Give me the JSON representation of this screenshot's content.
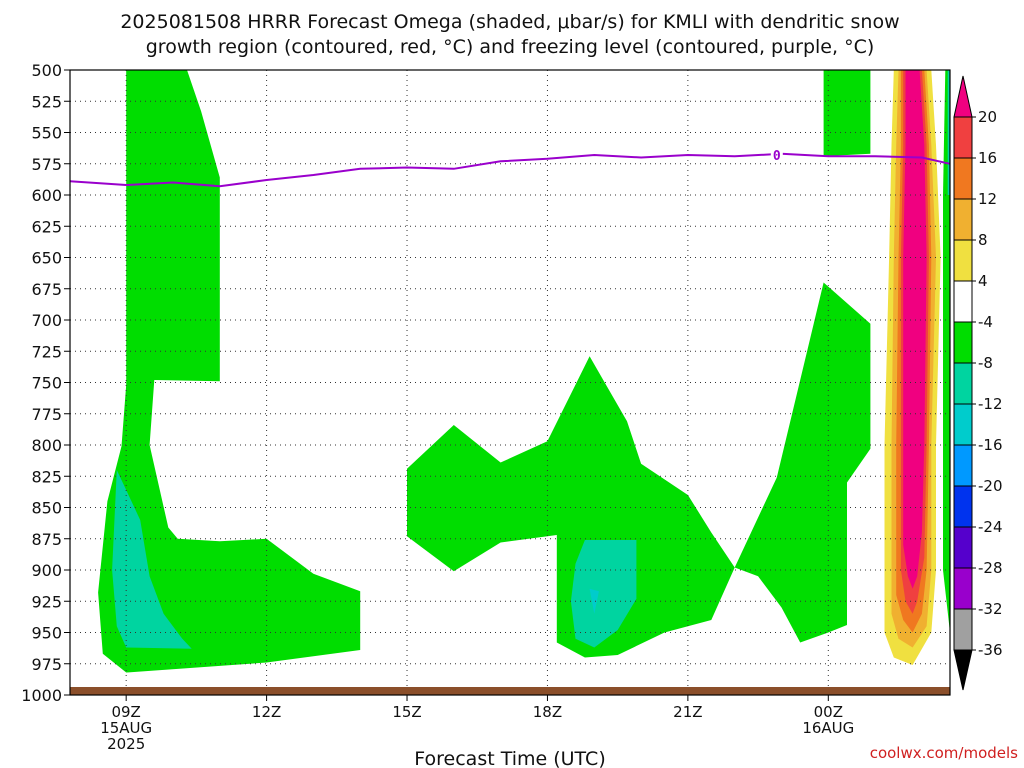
{
  "chart_data": {
    "type": "heatmap",
    "title_line1": "2025081508 HRRR Forecast Omega (shaded, μbar/s) for KMLI with dendritic snow",
    "title_line2": "growth region (contoured, red, °C) and freezing level (contoured, purple, °C)",
    "xlabel": "Forecast Time (UTC)",
    "credit": "coolwx.com/models",
    "y_axis": {
      "label": "",
      "ticks": [
        500,
        525,
        550,
        575,
        600,
        625,
        650,
        675,
        700,
        725,
        750,
        775,
        800,
        825,
        850,
        875,
        900,
        925,
        950,
        975,
        1000
      ],
      "tick_labels": [
        "500",
        "525",
        "550",
        "575",
        "600",
        "625",
        "650",
        "675",
        "700",
        "725",
        "750",
        "775",
        "800",
        "825",
        "850",
        "875",
        "900",
        "925",
        "950",
        "975",
        "1000"
      ],
      "range": [
        500,
        1000
      ],
      "inverted": true
    },
    "x_axis": {
      "range_hours": [
        7.8,
        26.6
      ],
      "ticks": [
        {
          "hour": 9,
          "lines": [
            "09Z",
            "15AUG",
            "2025"
          ]
        },
        {
          "hour": 12,
          "lines": [
            "12Z"
          ]
        },
        {
          "hour": 15,
          "lines": [
            "15Z"
          ]
        },
        {
          "hour": 18,
          "lines": [
            "18Z"
          ]
        },
        {
          "hour": 21,
          "lines": [
            "21Z"
          ]
        },
        {
          "hour": 24,
          "lines": [
            "00Z",
            "16AUG"
          ]
        }
      ]
    },
    "grid": true,
    "colorbar": {
      "levels": [
        -36,
        -32,
        -28,
        -24,
        -20,
        -16,
        -12,
        -8,
        -4,
        4,
        8,
        12,
        16,
        20
      ],
      "labels": [
        "-36",
        "-32",
        "-28",
        "-24",
        "-20",
        "-16",
        "-12",
        "-8",
        "-4",
        "4",
        "8",
        "12",
        "16",
        "20"
      ],
      "colors": [
        "#000000",
        "#a0a0a0",
        "#9900cc",
        "#5500cc",
        "#0033ee",
        "#0099ff",
        "#00cccc",
        "#00d4a0",
        "#00dd00",
        "#ffffff",
        "#f0e040",
        "#f0b030",
        "#f07820",
        "#f04040",
        "#f00080"
      ]
    },
    "freezing_level": {
      "label": "0",
      "points": [
        [
          7.8,
          589
        ],
        [
          9,
          592
        ],
        [
          10,
          590
        ],
        [
          11,
          593
        ],
        [
          12,
          588
        ],
        [
          13,
          584
        ],
        [
          14,
          579
        ],
        [
          15,
          578
        ],
        [
          16,
          579
        ],
        [
          17,
          573
        ],
        [
          18,
          571
        ],
        [
          19,
          568
        ],
        [
          20,
          570
        ],
        [
          21,
          568
        ],
        [
          22,
          569
        ],
        [
          23,
          567
        ],
        [
          24,
          569
        ],
        [
          25,
          569
        ],
        [
          26,
          570
        ],
        [
          26.6,
          575
        ]
      ]
    },
    "omega_regions": [
      {
        "level": -4,
        "color": "#00dd00",
        "points": [
          [
            9.0,
            500
          ],
          [
            10.3,
            500
          ],
          [
            10.6,
            533
          ],
          [
            11.0,
            586
          ],
          [
            11.0,
            749
          ],
          [
            9.6,
            748
          ],
          [
            9.5,
            800
          ],
          [
            9.9,
            866
          ],
          [
            10.1,
            875
          ],
          [
            11.0,
            877
          ],
          [
            12.0,
            875
          ],
          [
            13.0,
            903
          ],
          [
            14.0,
            917
          ],
          [
            14.0,
            964
          ],
          [
            12.0,
            974
          ],
          [
            9.0,
            982
          ],
          [
            8.5,
            967
          ],
          [
            8.4,
            918
          ],
          [
            8.6,
            845
          ],
          [
            8.9,
            801
          ],
          [
            9.0,
            752
          ]
        ]
      },
      {
        "level": -4,
        "color": "#00dd00",
        "points": [
          [
            15.0,
            819
          ],
          [
            16.0,
            784
          ],
          [
            17.0,
            814
          ],
          [
            18.0,
            797
          ],
          [
            18.9,
            729
          ],
          [
            19.7,
            781
          ],
          [
            20.0,
            815
          ],
          [
            21.0,
            840
          ],
          [
            21.5,
            870
          ],
          [
            22.0,
            898
          ],
          [
            21.5,
            940
          ],
          [
            20.5,
            950
          ],
          [
            19.5,
            968
          ],
          [
            18.8,
            970
          ],
          [
            18.2,
            958
          ],
          [
            18.2,
            872
          ],
          [
            17.0,
            878
          ],
          [
            16.0,
            901
          ],
          [
            15.0,
            873
          ]
        ]
      },
      {
        "level": -4,
        "color": "#00dd00",
        "points": [
          [
            22.0,
            898
          ],
          [
            22.9,
            826
          ],
          [
            23.9,
            670
          ],
          [
            24.9,
            703
          ],
          [
            24.9,
            803
          ],
          [
            24.4,
            830
          ],
          [
            24.4,
            944
          ],
          [
            24.0,
            950
          ],
          [
            23.4,
            958
          ],
          [
            23.0,
            930
          ],
          [
            22.5,
            905
          ]
        ]
      },
      {
        "level": -4,
        "color": "#00dd00",
        "points": [
          [
            23.9,
            500
          ],
          [
            24.9,
            500
          ],
          [
            24.9,
            567
          ],
          [
            23.9,
            569
          ]
        ]
      },
      {
        "level": -4,
        "color": "#00dd00",
        "points": [
          [
            26.5,
            500
          ],
          [
            26.6,
            500
          ],
          [
            26.6,
            950
          ],
          [
            26.45,
            900
          ],
          [
            26.45,
            600
          ]
        ]
      },
      {
        "level": -8,
        "color": "#00d4a0",
        "points": [
          [
            8.8,
            820
          ],
          [
            9.3,
            860
          ],
          [
            9.5,
            905
          ],
          [
            9.8,
            935
          ],
          [
            10.2,
            955
          ],
          [
            10.4,
            963
          ],
          [
            9.0,
            962
          ],
          [
            8.8,
            945
          ],
          [
            8.7,
            900
          ]
        ]
      },
      {
        "level": -8,
        "color": "#00d4a0",
        "points": [
          [
            18.8,
            876
          ],
          [
            19.9,
            876
          ],
          [
            19.9,
            923
          ],
          [
            19.5,
            948
          ],
          [
            19.0,
            962
          ],
          [
            18.6,
            955
          ],
          [
            18.5,
            925
          ],
          [
            18.6,
            895
          ]
        ]
      },
      {
        "level": -8,
        "color": "#00d4a0",
        "points": [
          [
            26.55,
            500
          ],
          [
            26.6,
            500
          ],
          [
            26.6,
            600
          ],
          [
            26.55,
            600
          ]
        ]
      },
      {
        "level": -12,
        "color": "#00cccc",
        "points": [
          [
            18.9,
            915
          ],
          [
            19.1,
            917
          ],
          [
            19.0,
            935
          ]
        ]
      },
      {
        "level": 4,
        "color": "#f0e040",
        "points": [
          [
            25.4,
            500
          ],
          [
            26.2,
            500
          ],
          [
            26.3,
            560
          ],
          [
            26.4,
            650
          ],
          [
            26.3,
            800
          ],
          [
            26.3,
            900
          ],
          [
            26.2,
            950
          ],
          [
            25.8,
            976
          ],
          [
            25.4,
            970
          ],
          [
            25.2,
            950
          ],
          [
            25.2,
            800
          ],
          [
            25.3,
            650
          ],
          [
            25.35,
            560
          ]
        ]
      },
      {
        "level": 8,
        "color": "#f0b030",
        "points": [
          [
            25.5,
            500
          ],
          [
            26.1,
            500
          ],
          [
            26.2,
            560
          ],
          [
            26.3,
            650
          ],
          [
            26.2,
            800
          ],
          [
            26.2,
            900
          ],
          [
            26.1,
            945
          ],
          [
            25.8,
            962
          ],
          [
            25.5,
            955
          ],
          [
            25.35,
            935
          ],
          [
            25.35,
            800
          ],
          [
            25.4,
            650
          ],
          [
            25.45,
            560
          ]
        ]
      },
      {
        "level": 12,
        "color": "#f07820",
        "points": [
          [
            25.55,
            500
          ],
          [
            26.05,
            500
          ],
          [
            26.15,
            560
          ],
          [
            26.2,
            650
          ],
          [
            26.15,
            800
          ],
          [
            26.1,
            900
          ],
          [
            26.0,
            935
          ],
          [
            25.8,
            950
          ],
          [
            25.6,
            940
          ],
          [
            25.45,
            920
          ],
          [
            25.45,
            800
          ],
          [
            25.5,
            650
          ],
          [
            25.55,
            560
          ]
        ]
      },
      {
        "level": 16,
        "color": "#f04040",
        "points": [
          [
            25.6,
            500
          ],
          [
            26.0,
            500
          ],
          [
            26.1,
            560
          ],
          [
            26.15,
            650
          ],
          [
            26.1,
            800
          ],
          [
            26.05,
            890
          ],
          [
            25.9,
            925
          ],
          [
            25.8,
            935
          ],
          [
            25.65,
            925
          ],
          [
            25.55,
            900
          ],
          [
            25.55,
            800
          ],
          [
            25.55,
            650
          ],
          [
            25.6,
            560
          ]
        ]
      },
      {
        "level": 20,
        "color": "#f00080",
        "points": [
          [
            25.65,
            500
          ],
          [
            25.95,
            500
          ],
          [
            26.05,
            560
          ],
          [
            26.1,
            650
          ],
          [
            26.05,
            800
          ],
          [
            26.0,
            870
          ],
          [
            25.9,
            905
          ],
          [
            25.8,
            915
          ],
          [
            25.7,
            905
          ],
          [
            25.6,
            880
          ],
          [
            25.6,
            800
          ],
          [
            25.6,
            650
          ],
          [
            25.65,
            560
          ]
        ]
      }
    ]
  }
}
